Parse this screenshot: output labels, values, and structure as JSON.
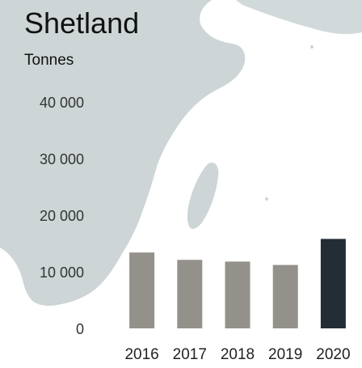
{
  "header": {
    "title": "Shetland",
    "unit": "Tonnes"
  },
  "colors": {
    "bar_default": "#93918a",
    "bar_highlight": "#232d36",
    "map_land": "#cdd5d6",
    "background": "#ffffff"
  },
  "chart_data": {
    "type": "bar",
    "title": "Shetland",
    "ylabel": "Tonnes",
    "xlabel": "",
    "categories": [
      "2016",
      "2017",
      "2018",
      "2019",
      "2020"
    ],
    "values": [
      13400,
      12100,
      11800,
      11200,
      15800
    ],
    "highlight_index": 4,
    "ylim": [
      0,
      40000
    ],
    "yticks": [
      0,
      10000,
      20000,
      30000,
      40000
    ],
    "ytick_labels": [
      "0",
      "10 000",
      "20 000",
      "30 000",
      "40 000"
    ],
    "grid": false,
    "legend": "none"
  }
}
